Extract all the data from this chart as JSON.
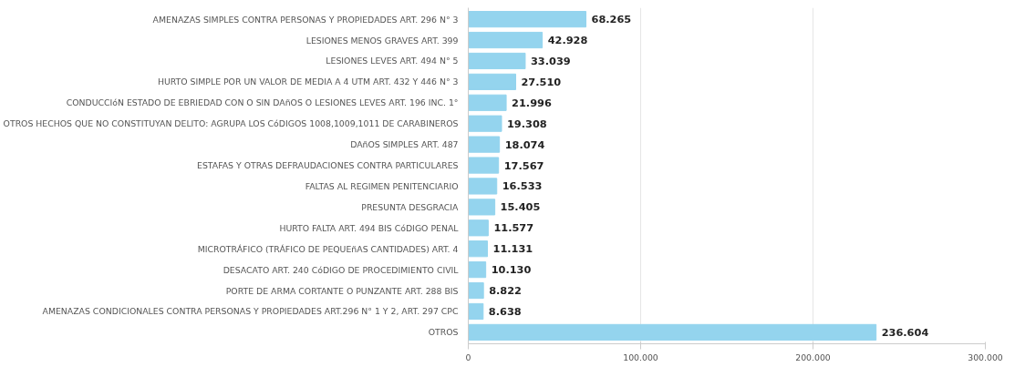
{
  "chart_data": {
    "type": "bar",
    "orientation": "horizontal",
    "categories": [
      "AMENAZAS SIMPLES CONTRA PERSONAS Y PROPIEDADES ART. 296 N° 3",
      "LESIONES MENOS GRAVES ART. 399",
      "LESIONES LEVES ART. 494 N° 5",
      "HURTO SIMPLE POR UN VALOR DE MEDIA A 4 UTM ART. 432 Y 446 N° 3",
      "CONDUCCIóN ESTADO DE EBRIEDAD CON O SIN DAñOS O LESIONES LEVES ART. 196 INC. 1°",
      "OTROS HECHOS QUE NO CONSTITUYAN DELITO: AGRUPA LOS CóDIGOS 1008,1009,1011 DE CARABINEROS",
      "DAñOS SIMPLES ART. 487",
      "ESTAFAS Y OTRAS DEFRAUDACIONES CONTRA PARTICULARES",
      "FALTAS AL REGIMEN PENITENCIARIO",
      "PRESUNTA DESGRACIA",
      "HURTO FALTA ART. 494 BIS CóDIGO PENAL",
      "MICROTRÁFICO (TRÁFICO DE PEQUEñAS CANTIDADES) ART. 4",
      "DESACATO ART. 240 CóDIGO DE PROCEDIMIENTO CIVIL",
      "PORTE DE ARMA CORTANTE O PUNZANTE ART. 288 BIS",
      "AMENAZAS CONDICIONALES CONTRA PERSONAS Y PROPIEDADES ART.296 N° 1 Y 2, ART. 297 CPC",
      "OTROS"
    ],
    "values": [
      68265,
      42928,
      33039,
      27510,
      21996,
      19308,
      18074,
      17567,
      16533,
      15405,
      11577,
      11131,
      10130,
      8822,
      8638,
      236604
    ],
    "value_labels": [
      "68.265",
      "42.928",
      "33.039",
      "27.510",
      "21.996",
      "19.308",
      "18.074",
      "17.567",
      "16.533",
      "15.405",
      "11.577",
      "11.131",
      "10.130",
      "8.822",
      "8.638",
      "236.604"
    ],
    "color": "#94d4ee",
    "xlim": [
      0,
      300000
    ],
    "xticks": [
      0,
      {
        "value": 100000,
        "label": "100.000"
      },
      {
        "value": 200000,
        "label": "200.000"
      },
      {
        "value": 300000,
        "label": "300.000"
      }
    ],
    "grid": "x"
  }
}
